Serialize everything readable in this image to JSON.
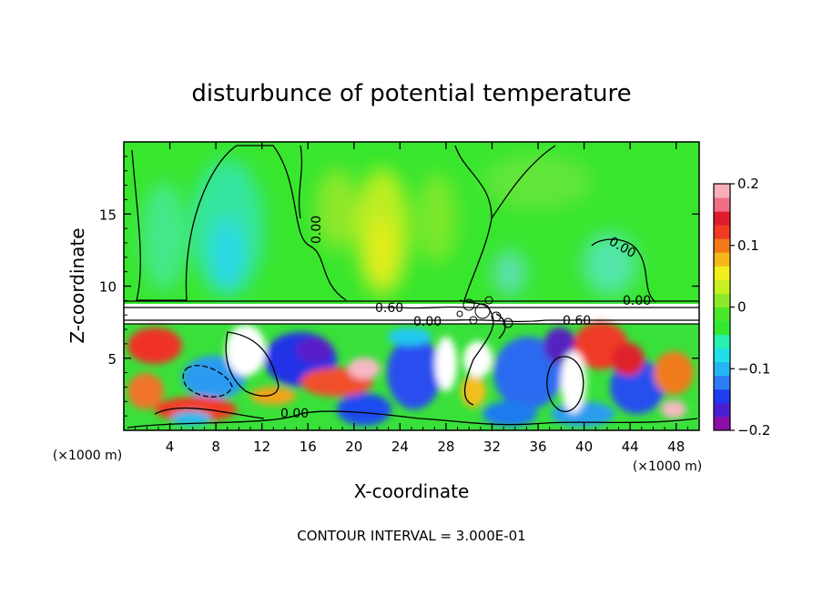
{
  "chart_data": {
    "type": "heatmap",
    "title": "disturbunce of potential temperature",
    "xlabel": "X-coordinate",
    "ylabel": "Z-coordinate",
    "x_unit": "(×1000 m)",
    "y_unit": "(×1000 m)",
    "x_ticks": [
      "4",
      "8",
      "12",
      "16",
      "20",
      "24",
      "28",
      "32",
      "36",
      "40",
      "44",
      "48"
    ],
    "y_ticks": [
      "5",
      "10",
      "15"
    ],
    "xlim": [
      0,
      50
    ],
    "ylim": [
      0,
      20
    ],
    "colorbar": {
      "range": [
        -0.2,
        0.2
      ],
      "tick_labels": [
        "0.2",
        "0.1",
        "0",
        "−0.1",
        "−0.2"
      ],
      "colors": [
        "#8B0FA6",
        "#4B1FD0",
        "#1E3CF0",
        "#2D7BF5",
        "#22B6F2",
        "#1FE0E8",
        "#27F0B0",
        "#33E833",
        "#4CE62A",
        "#8EE82A",
        "#C8F020",
        "#F2EE1E",
        "#F5B81A",
        "#F57A1A",
        "#F23A22",
        "#E01C2C",
        "#F06F84",
        "#F7B0B8"
      ]
    },
    "contour_labels": [
      "0.60",
      "0.60",
      "0.00",
      "0.00",
      "0.00",
      "0.00",
      "0.00"
    ],
    "contour_interval": "CONTOUR INTERVAL = 3.000E-01"
  }
}
